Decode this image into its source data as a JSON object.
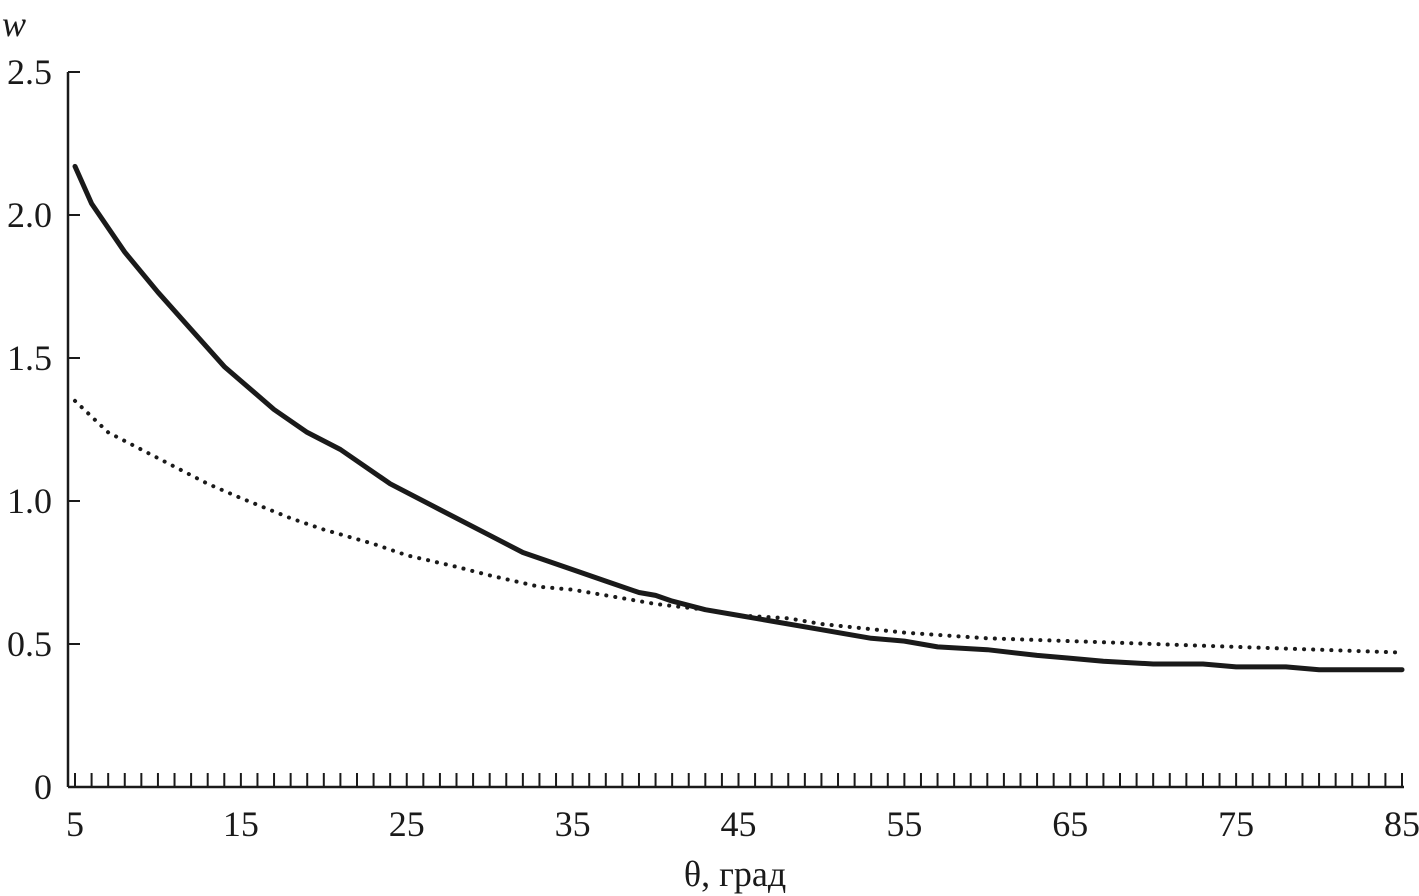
{
  "chart_data": {
    "type": "line",
    "title": "",
    "xlabel": "θ, град",
    "ylabel": "w",
    "xlim": [
      5,
      85
    ],
    "ylim": [
      0,
      2.5
    ],
    "x_ticks": [
      5,
      15,
      25,
      35,
      45,
      55,
      65,
      75,
      85
    ],
    "x_tick_labels": [
      "5",
      "15",
      "25",
      "35",
      "45",
      "55",
      "65",
      "75",
      "85"
    ],
    "x_minor_step": 1,
    "y_ticks": [
      0,
      0.5,
      1.0,
      1.5,
      2.0,
      2.5
    ],
    "y_tick_labels": [
      "0",
      "0.5",
      "1.0",
      "1.5",
      "2.0",
      "2.5"
    ],
    "grid": false,
    "legend": "none",
    "series": [
      {
        "style": "solid",
        "color": "#1a1a1a",
        "x": [
          5,
          6,
          8,
          10,
          12,
          14,
          17,
          19,
          21,
          24,
          27,
          30,
          32,
          35,
          37,
          39,
          40,
          41,
          43,
          45,
          47,
          50,
          53,
          55,
          57,
          60,
          63,
          65,
          67,
          70,
          73,
          75,
          78,
          80,
          85
        ],
        "y": [
          2.17,
          2.04,
          1.87,
          1.73,
          1.6,
          1.47,
          1.32,
          1.24,
          1.18,
          1.06,
          0.97,
          0.88,
          0.82,
          0.76,
          0.72,
          0.68,
          0.67,
          0.65,
          0.62,
          0.6,
          0.58,
          0.55,
          0.52,
          0.51,
          0.49,
          0.48,
          0.46,
          0.45,
          0.44,
          0.43,
          0.43,
          0.42,
          0.42,
          0.41,
          0.41
        ]
      },
      {
        "style": "dotted",
        "color": "#1a1a1a",
        "x": [
          5,
          7,
          10,
          13,
          15,
          18,
          20,
          23,
          25,
          28,
          30,
          33,
          35,
          38,
          40,
          43,
          45,
          48,
          50,
          55,
          60,
          65,
          70,
          75,
          80,
          85
        ],
        "y": [
          1.35,
          1.24,
          1.15,
          1.06,
          1.01,
          0.94,
          0.9,
          0.85,
          0.81,
          0.77,
          0.74,
          0.7,
          0.69,
          0.66,
          0.64,
          0.62,
          0.6,
          0.59,
          0.57,
          0.54,
          0.52,
          0.51,
          0.5,
          0.49,
          0.48,
          0.47
        ]
      }
    ]
  }
}
